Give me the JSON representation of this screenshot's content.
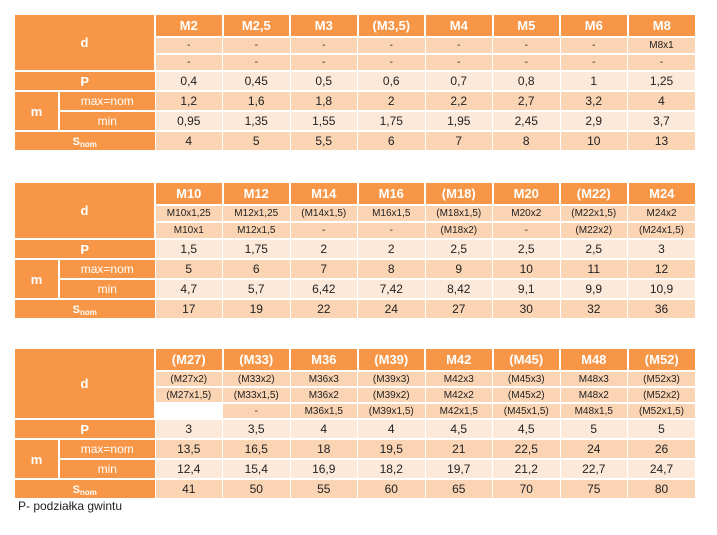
{
  "labels": {
    "d": "d",
    "P": "P",
    "m": "m",
    "max_nom": "max=nom",
    "min": "min",
    "s_main": "S",
    "s_sub": "nom"
  },
  "tables": [
    {
      "header": [
        "M2",
        "M2,5",
        "M3",
        "(M3,5)",
        "M4",
        "M5",
        "M6",
        "M8"
      ],
      "d_row1": [
        "-",
        "-",
        "-",
        "-",
        "-",
        "-",
        "-",
        "M8x1"
      ],
      "d_row2": [
        "-",
        "-",
        "-",
        "-",
        "-",
        "-",
        "-",
        "-"
      ],
      "P": [
        "0,4",
        "0,45",
        "0,5",
        "0,6",
        "0,7",
        "0,8",
        "1",
        "1,25"
      ],
      "m_max": [
        "1,2",
        "1,6",
        "1,8",
        "2",
        "2,2",
        "2,7",
        "3,2",
        "4"
      ],
      "m_min": [
        "0,95",
        "1,35",
        "1,55",
        "1,75",
        "1,95",
        "2,45",
        "2,9",
        "3,7"
      ],
      "S": [
        "4",
        "5",
        "5,5",
        "6",
        "7",
        "8",
        "10",
        "13"
      ]
    },
    {
      "header": [
        "M10",
        "M12",
        "M14",
        "M16",
        "(M18)",
        "M20",
        "(M22)",
        "M24"
      ],
      "d_row1": [
        "M10x1,25",
        "M12x1,25",
        "(M14x1,5)",
        "M16x1,5",
        "(M18x1,5)",
        "M20x2",
        "(M22x1,5)",
        "M24x2"
      ],
      "d_row2": [
        "M10x1",
        "M12x1,5",
        "-",
        "-",
        "(M18x2)",
        "-",
        "(M22x2)",
        "(M24x1,5)"
      ],
      "P": [
        "1,5",
        "1,75",
        "2",
        "2",
        "2,5",
        "2,5",
        "2,5",
        "3"
      ],
      "m_max": [
        "5",
        "6",
        "7",
        "8",
        "9",
        "10",
        "11",
        "12"
      ],
      "m_min": [
        "4,7",
        "5,7",
        "6,42",
        "7,42",
        "8,42",
        "9,1",
        "9,9",
        "10,9"
      ],
      "S": [
        "17",
        "19",
        "22",
        "24",
        "27",
        "30",
        "32",
        "36"
      ]
    },
    {
      "header": [
        "(M27)",
        "(M33)",
        "M36",
        "(M39)",
        "M42",
        "(M45)",
        "M48",
        "(M52)"
      ],
      "d_row1": [
        "(M27x2)",
        "(M33x2)",
        "M36x3",
        "(M39x3)",
        "M42x3",
        "(M45x3)",
        "M48x3",
        "(M52x3)"
      ],
      "d_row2": [
        "(M27x1,5)",
        "(M33x1,5)",
        "M36x2",
        "(M39x2)",
        "M42x2",
        "(M45x2)",
        "M48x2",
        "(M52x2)"
      ],
      "d_row3": [
        "",
        "-",
        "M36x1,5",
        "(M39x1,5)",
        "M42x1,5",
        "(M45x1,5)",
        "M48x1,5",
        "(M52x1,5)"
      ],
      "P": [
        "3",
        "3,5",
        "4",
        "4",
        "4,5",
        "4,5",
        "5",
        "5"
      ],
      "m_max": [
        "13,5",
        "16,5",
        "18",
        "19,5",
        "21",
        "22,5",
        "24",
        "26"
      ],
      "m_min": [
        "12,4",
        "15,4",
        "16,9",
        "18,2",
        "19,7",
        "21,2",
        "22,7",
        "24,7"
      ],
      "S": [
        "41",
        "50",
        "55",
        "60",
        "65",
        "70",
        "75",
        "80"
      ]
    }
  ],
  "footnote": "P- podziałka gwintu"
}
